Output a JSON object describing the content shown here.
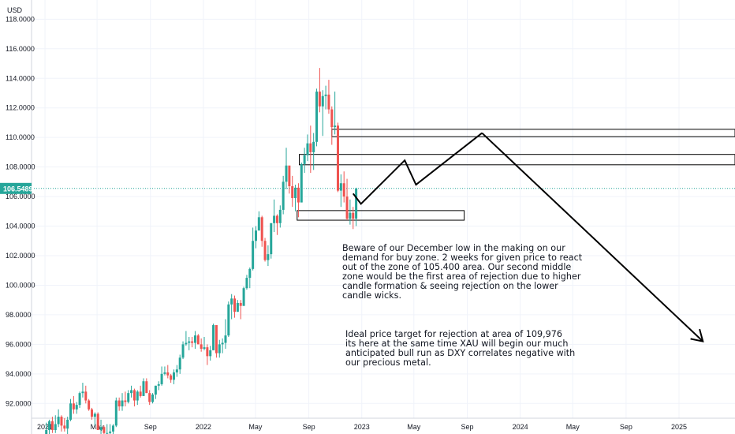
{
  "chart_data": {
    "type": "candlestick",
    "unit_label": "USD",
    "ylim": [
      91.0,
      119.3
    ],
    "y_ticks": [
      "118.0000",
      "116.0000",
      "114.0000",
      "112.0000",
      "110.0000",
      "108.0000",
      "106.0000",
      "104.0000",
      "102.0000",
      "100.0000",
      "98.0000",
      "96.0000",
      "94.0000",
      "92.0000"
    ],
    "x_range": [
      "2020-12-01",
      "2025-05-10"
    ],
    "x_ticks": [
      {
        "date": "2021-01-01",
        "label": "2021",
        "major": true
      },
      {
        "date": "2021-05-01",
        "label": "May",
        "major": false
      },
      {
        "date": "2021-09-01",
        "label": "Sep",
        "major": false
      },
      {
        "date": "2022-01-01",
        "label": "2022",
        "major": true
      },
      {
        "date": "2022-05-01",
        "label": "May",
        "major": false
      },
      {
        "date": "2022-09-01",
        "label": "Sep",
        "major": false
      },
      {
        "date": "2023-01-01",
        "label": "2023",
        "major": true
      },
      {
        "date": "2023-05-01",
        "label": "May",
        "major": false
      },
      {
        "date": "2023-09-01",
        "label": "Sep",
        "major": false
      },
      {
        "date": "2024-01-01",
        "label": "2024",
        "major": true
      },
      {
        "date": "2024-05-01",
        "label": "May",
        "major": false
      },
      {
        "date": "2024-09-01",
        "label": "Sep",
        "major": false
      },
      {
        "date": "2025-01-01",
        "label": "2025",
        "major": true
      }
    ],
    "grid": true,
    "last_price": {
      "value": 106.5489,
      "label": "106.5489"
    },
    "candles": [
      [
        "2021-01-04",
        89.9,
        90.7,
        89.4,
        90.2
      ],
      [
        "2021-01-11",
        90.2,
        90.9,
        89.8,
        90.8
      ],
      [
        "2021-01-18",
        90.8,
        91.1,
        90.0,
        90.2
      ],
      [
        "2021-01-25",
        90.2,
        91.2,
        90.0,
        90.6
      ],
      [
        "2021-02-01",
        90.6,
        91.6,
        90.4,
        91.1
      ],
      [
        "2021-02-08",
        91.1,
        91.2,
        90.1,
        90.5
      ],
      [
        "2021-02-15",
        90.5,
        91.0,
        90.1,
        90.3
      ],
      [
        "2021-02-22",
        90.3,
        91.1,
        89.7,
        90.9
      ],
      [
        "2021-03-01",
        90.9,
        92.3,
        90.8,
        92.0
      ],
      [
        "2021-03-08",
        92.0,
        92.5,
        91.3,
        91.6
      ],
      [
        "2021-03-15",
        91.6,
        92.1,
        91.3,
        91.9
      ],
      [
        "2021-03-22",
        91.9,
        92.8,
        91.7,
        92.7
      ],
      [
        "2021-03-29",
        92.7,
        93.4,
        92.4,
        92.8
      ],
      [
        "2021-04-05",
        92.8,
        93.2,
        92.0,
        92.2
      ],
      [
        "2021-04-12",
        92.2,
        92.3,
        91.5,
        91.6
      ],
      [
        "2021-04-19",
        91.6,
        91.7,
        90.9,
        91.1
      ],
      [
        "2021-04-26",
        91.1,
        91.4,
        90.5,
        91.3
      ],
      [
        "2021-05-03",
        91.3,
        91.4,
        90.4,
        90.2
      ],
      [
        "2021-05-10",
        90.2,
        90.9,
        89.9,
        90.4
      ],
      [
        "2021-05-17",
        90.4,
        90.5,
        89.6,
        90.0
      ],
      [
        "2021-05-24",
        90.0,
        90.6,
        89.5,
        90.0
      ],
      [
        "2021-05-31",
        90.0,
        90.6,
        89.7,
        90.1
      ],
      [
        "2021-06-07",
        90.1,
        90.6,
        89.9,
        90.5
      ],
      [
        "2021-06-14",
        90.5,
        92.4,
        90.4,
        92.2
      ],
      [
        "2021-06-21",
        92.2,
        92.4,
        91.5,
        91.8
      ],
      [
        "2021-06-28",
        91.8,
        92.7,
        91.5,
        92.2
      ],
      [
        "2021-07-05",
        92.2,
        92.8,
        91.8,
        92.1
      ],
      [
        "2021-07-12",
        92.1,
        92.9,
        92.0,
        92.7
      ],
      [
        "2021-07-19",
        92.7,
        93.2,
        92.4,
        92.9
      ],
      [
        "2021-07-26",
        92.9,
        93.0,
        91.8,
        92.2
      ],
      [
        "2021-08-02",
        92.2,
        92.9,
        91.9,
        92.8
      ],
      [
        "2021-08-09",
        92.8,
        93.2,
        92.4,
        92.5
      ],
      [
        "2021-08-16",
        92.5,
        93.7,
        92.5,
        93.5
      ],
      [
        "2021-08-23",
        93.5,
        93.7,
        92.7,
        92.7
      ],
      [
        "2021-08-30",
        92.7,
        92.9,
        91.9,
        92.1
      ],
      [
        "2021-09-06",
        92.1,
        92.7,
        92.0,
        92.6
      ],
      [
        "2021-09-13",
        92.6,
        93.2,
        92.3,
        93.2
      ],
      [
        "2021-09-20",
        93.2,
        93.5,
        92.9,
        93.3
      ],
      [
        "2021-09-27",
        93.3,
        94.5,
        93.2,
        94.0
      ],
      [
        "2021-10-04",
        94.0,
        94.5,
        93.9,
        94.1
      ],
      [
        "2021-10-11",
        94.1,
        94.6,
        93.7,
        93.9
      ],
      [
        "2021-10-18",
        93.9,
        94.0,
        93.4,
        93.6
      ],
      [
        "2021-10-25",
        93.6,
        94.3,
        93.3,
        94.1
      ],
      [
        "2021-11-01",
        94.1,
        94.6,
        93.8,
        94.3
      ],
      [
        "2021-11-08",
        94.3,
        95.3,
        94.0,
        95.1
      ],
      [
        "2021-11-15",
        95.1,
        96.2,
        95.0,
        96.0
      ],
      [
        "2021-11-22",
        96.0,
        96.9,
        95.9,
        96.1
      ],
      [
        "2021-11-29",
        96.1,
        96.5,
        95.6,
        96.2
      ],
      [
        "2021-12-06",
        96.2,
        96.5,
        95.8,
        96.1
      ],
      [
        "2021-12-13",
        96.1,
        96.9,
        95.7,
        96.6
      ],
      [
        "2021-12-20",
        96.6,
        96.7,
        96.0,
        96.0
      ],
      [
        "2021-12-27",
        96.0,
        96.4,
        95.5,
        95.7
      ],
      [
        "2022-01-03",
        95.7,
        96.5,
        95.6,
        95.8
      ],
      [
        "2022-01-10",
        95.8,
        96.0,
        94.6,
        95.2
      ],
      [
        "2022-01-17",
        95.2,
        95.9,
        94.9,
        95.6
      ],
      [
        "2022-01-24",
        95.6,
        97.4,
        95.6,
        97.3
      ],
      [
        "2022-01-31",
        97.3,
        97.3,
        95.1,
        95.4
      ],
      [
        "2022-02-07",
        95.4,
        96.3,
        95.1,
        96.0
      ],
      [
        "2022-02-14",
        96.0,
        96.4,
        95.4,
        96.1
      ],
      [
        "2022-02-21",
        96.1,
        97.7,
        95.7,
        96.6
      ],
      [
        "2022-02-28",
        96.6,
        98.9,
        96.5,
        98.7
      ],
      [
        "2022-03-07",
        98.7,
        99.4,
        97.7,
        99.1
      ],
      [
        "2022-03-14",
        99.1,
        99.3,
        97.8,
        98.2
      ],
      [
        "2022-03-21",
        98.2,
        99.0,
        98.2,
        98.8
      ],
      [
        "2022-03-28",
        98.8,
        99.0,
        97.7,
        98.6
      ],
      [
        "2022-04-04",
        98.6,
        99.9,
        98.6,
        99.8
      ],
      [
        "2022-04-11",
        99.8,
        100.7,
        99.7,
        100.5
      ],
      [
        "2022-04-18",
        100.5,
        101.2,
        99.8,
        101.1
      ],
      [
        "2022-04-25",
        101.1,
        103.9,
        101.0,
        103.0
      ],
      [
        "2022-05-02",
        103.0,
        104.0,
        102.5,
        103.7
      ],
      [
        "2022-05-09",
        103.7,
        105.0,
        103.7,
        104.6
      ],
      [
        "2022-05-16",
        104.6,
        104.7,
        102.6,
        103.0
      ],
      [
        "2022-05-23",
        103.0,
        103.2,
        101.6,
        101.7
      ],
      [
        "2022-05-30",
        101.7,
        102.7,
        101.3,
        102.1
      ],
      [
        "2022-06-06",
        102.1,
        104.2,
        101.8,
        104.2
      ],
      [
        "2022-06-13",
        104.2,
        105.8,
        103.6,
        104.7
      ],
      [
        "2022-06-20",
        104.7,
        104.8,
        103.4,
        104.2
      ],
      [
        "2022-06-27",
        104.2,
        105.4,
        103.9,
        105.1
      ],
      [
        "2022-07-04",
        105.1,
        107.4,
        104.8,
        107.0
      ],
      [
        "2022-07-11",
        107.0,
        109.3,
        106.5,
        108.1
      ],
      [
        "2022-07-18",
        108.1,
        108.0,
        106.2,
        106.7
      ],
      [
        "2022-07-25",
        106.7,
        107.4,
        105.3,
        105.9
      ],
      [
        "2022-08-01",
        105.9,
        106.8,
        105.0,
        106.6
      ],
      [
        "2022-08-08",
        106.6,
        106.9,
        104.6,
        105.6
      ],
      [
        "2022-08-15",
        105.6,
        108.3,
        105.6,
        108.2
      ],
      [
        "2022-08-22",
        108.2,
        109.3,
        107.6,
        108.8
      ],
      [
        "2022-08-29",
        108.8,
        110.2,
        108.4,
        109.6
      ],
      [
        "2022-09-05",
        109.6,
        110.8,
        107.6,
        109.0
      ],
      [
        "2022-09-12",
        109.0,
        110.3,
        107.8,
        109.7
      ],
      [
        "2022-09-19",
        109.7,
        113.3,
        109.4,
        113.1
      ],
      [
        "2022-09-26",
        113.1,
        114.7,
        111.7,
        112.1
      ],
      [
        "2022-10-03",
        112.1,
        113.2,
        110.1,
        112.8
      ],
      [
        "2022-10-10",
        112.8,
        113.5,
        111.9,
        112.9
      ],
      [
        "2022-10-17",
        112.9,
        113.9,
        111.6,
        111.9
      ],
      [
        "2022-10-24",
        111.9,
        112.1,
        109.5,
        110.7
      ],
      [
        "2022-10-31",
        110.7,
        113.1,
        110.2,
        110.8
      ],
      [
        "2022-11-07",
        110.8,
        111.0,
        106.3,
        106.4
      ],
      [
        "2022-11-14",
        106.4,
        107.5,
        105.3,
        106.9
      ],
      [
        "2022-11-21",
        106.9,
        107.7,
        105.6,
        106.0
      ],
      [
        "2022-11-28",
        106.0,
        107.2,
        104.4,
        104.5
      ],
      [
        "2022-12-05",
        104.5,
        105.8,
        104.1,
        104.9
      ],
      [
        "2022-12-12",
        104.9,
        105.3,
        103.8,
        104.5
      ],
      [
        "2022-12-19",
        104.5,
        106.6,
        104.0,
        106.55
      ]
    ],
    "zones": [
      {
        "from": "2022-10-24",
        "to": "2025-05-10",
        "top": 110.55,
        "bottom": 110.05
      },
      {
        "from": "2022-08-10",
        "to": "2025-05-10",
        "top": 108.85,
        "bottom": 108.15
      },
      {
        "from": "2022-08-05",
        "to": "2023-08-25",
        "top": 105.05,
        "bottom": 104.4
      }
    ],
    "path": [
      [
        "2022-12-12",
        106.2
      ],
      [
        "2022-12-30",
        105.5
      ],
      [
        "2023-04-10",
        108.45
      ],
      [
        "2023-05-06",
        106.8
      ],
      [
        "2023-10-05",
        110.3
      ]
    ],
    "arrow": {
      "from": [
        "2023-10-05",
        110.3
      ],
      "to": [
        "2025-02-25",
        96.2
      ]
    },
    "annotations": [
      {
        "lines": [
          "Beware of our December low in the making on our",
          "demand for buy zone. 2 weeks for given price to react",
          "out of the zone of 105.400 area. Our second middle",
          "zone would be the first area of rejection due to higher",
          "candle formation & seeing rejection on the lower",
          "candle wicks."
        ]
      },
      {
        "lines": [
          "Ideal price target for rejection at area of 109,976",
          "its here at the same time XAU will begin our much",
          "anticipated bull run as DXY correlates negative with",
          "our precious metal."
        ]
      }
    ],
    "colors": {
      "up": "#26a69a",
      "down": "#ef5350",
      "grid": "#f0f3fa",
      "axis": "#d1d4dc",
      "text": "#131722",
      "price_line": "#26a69a",
      "drawing": "#000000"
    }
  }
}
